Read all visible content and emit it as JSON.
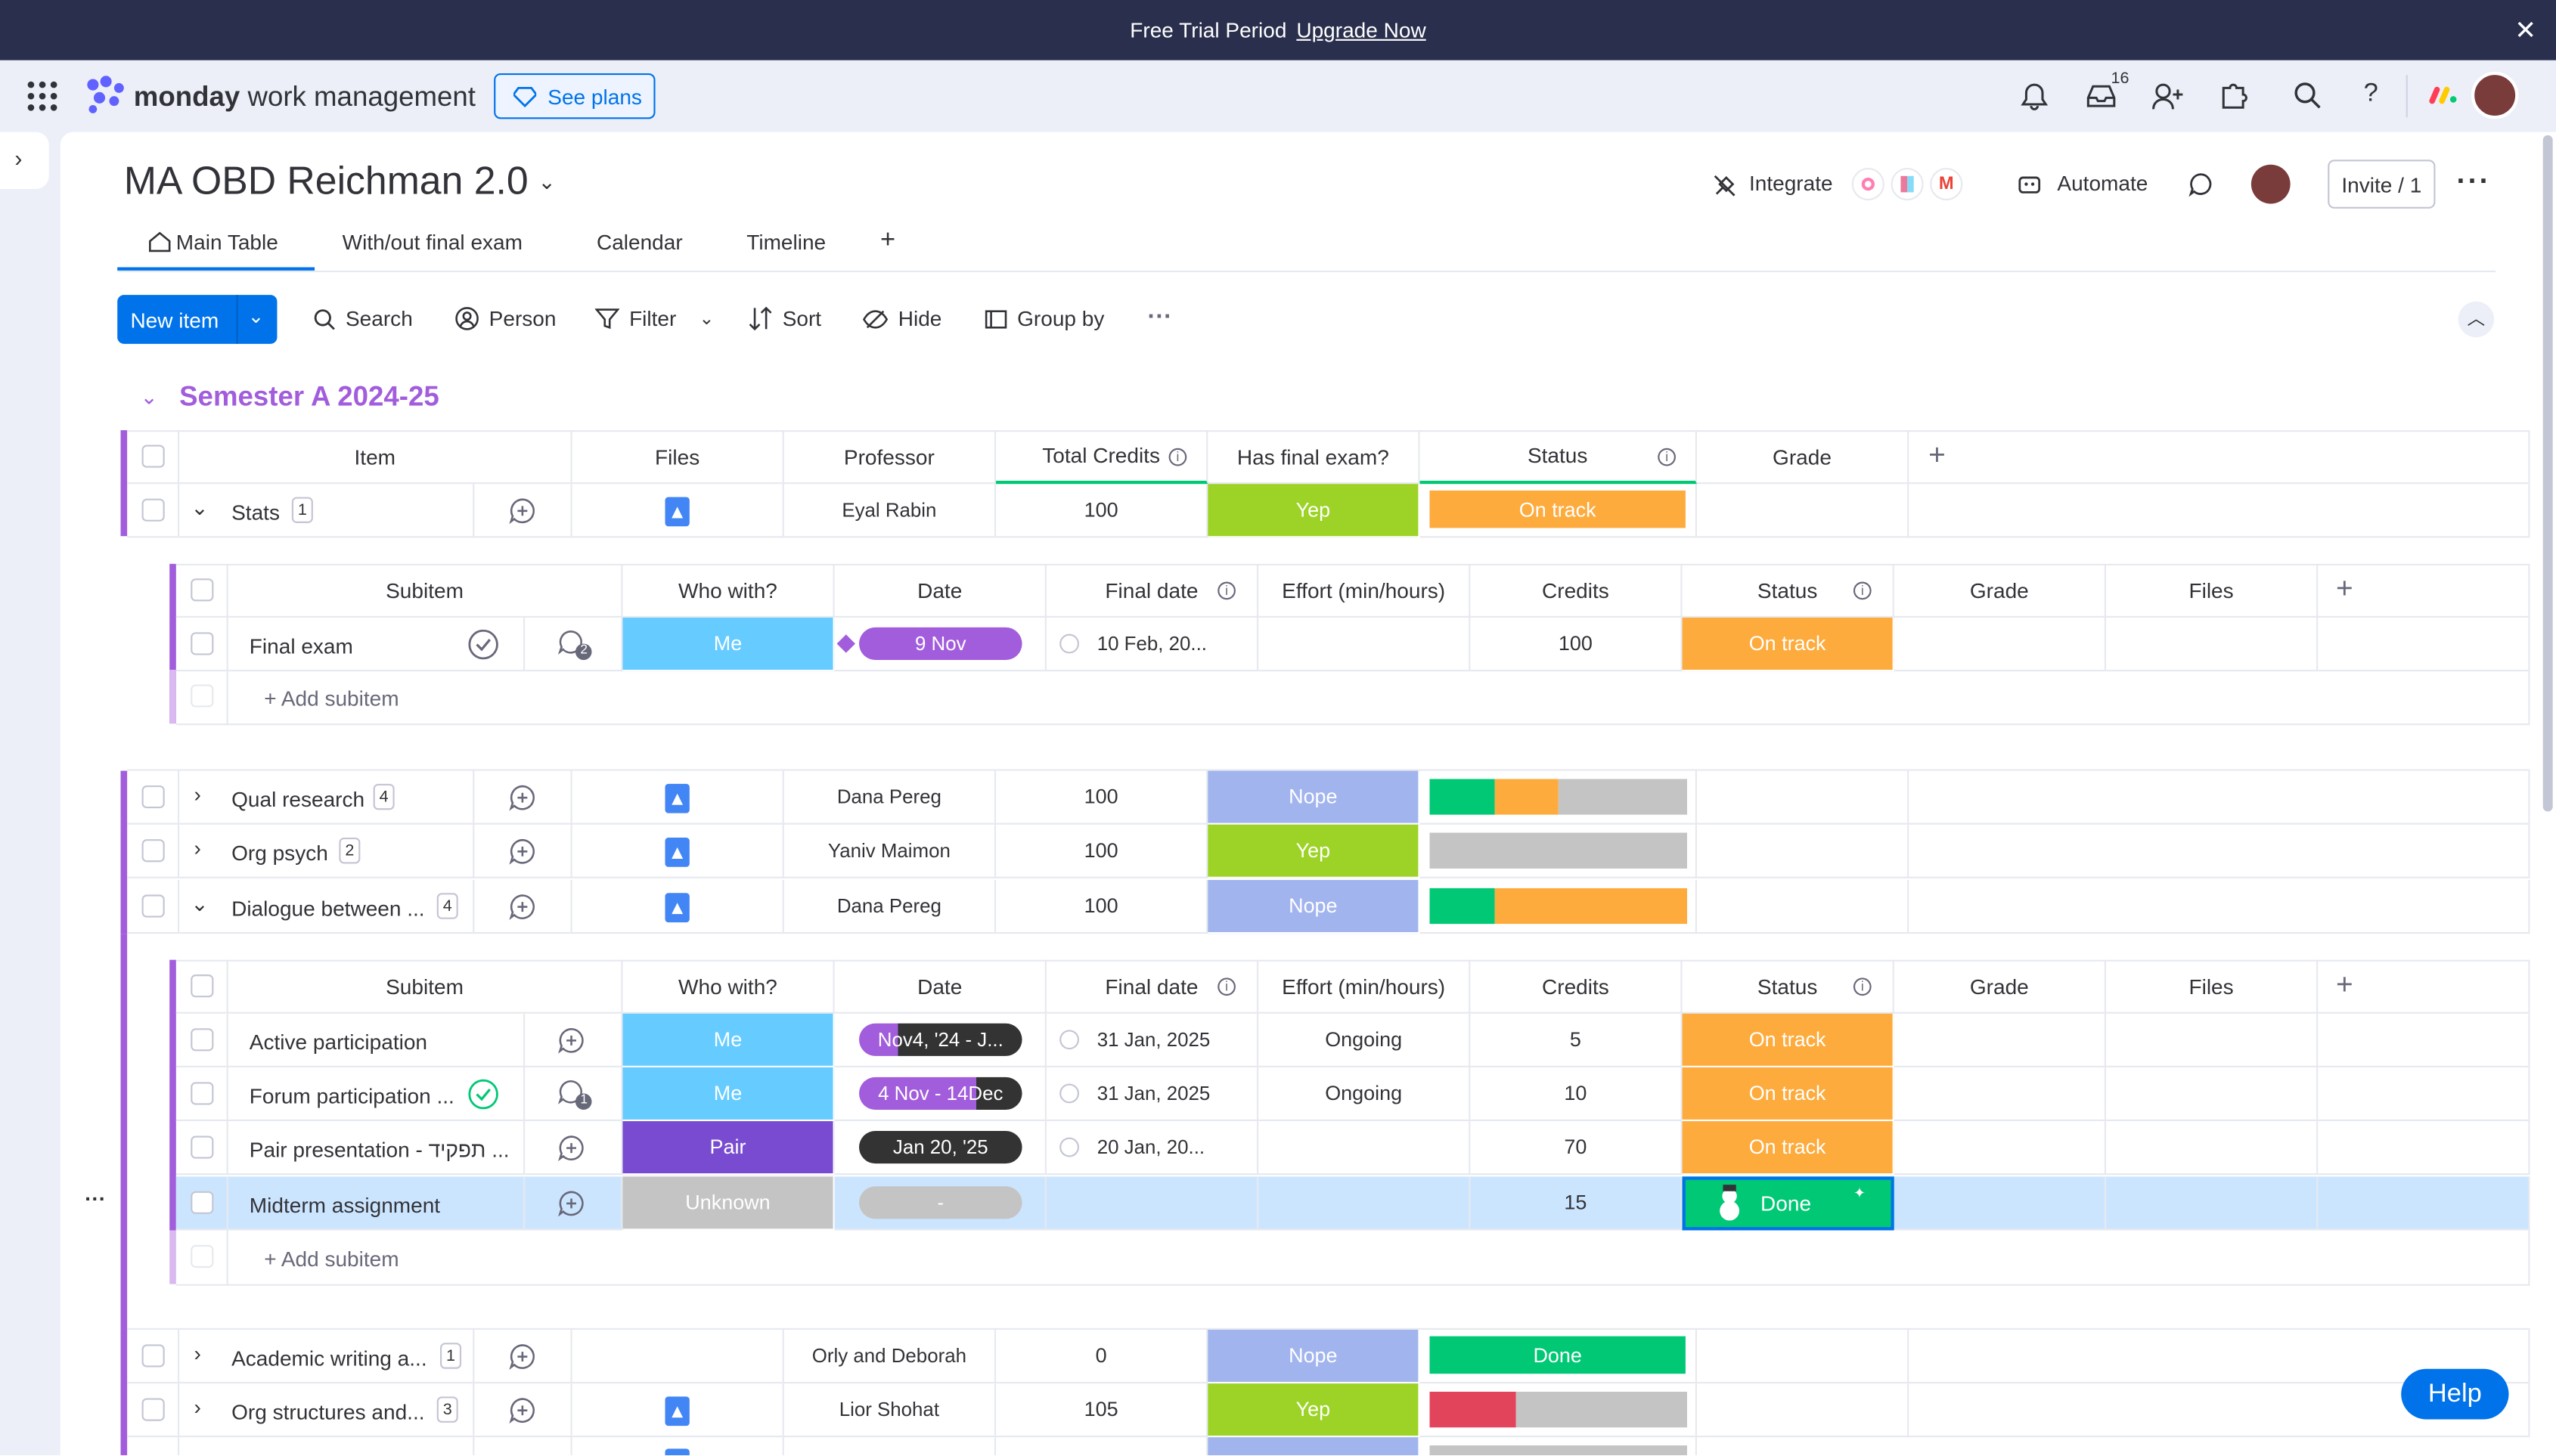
{
  "trial": {
    "text": "Free Trial Period",
    "link": "Upgrade Now"
  },
  "app": {
    "logo_bold": "monday",
    "logo_rest": "work management",
    "see_plans": "See plans",
    "inbox_count": "16"
  },
  "board": {
    "title": "MA OBD Reichman 2.0",
    "integrate": "Integrate",
    "automate": "Automate",
    "invite": "Invite / 1",
    "tabs": [
      "Main Table",
      "With/out final exam",
      "Calendar",
      "Timeline"
    ],
    "toolbar": {
      "new_item": "New item",
      "search": "Search",
      "person": "Person",
      "filter": "Filter",
      "sort": "Sort",
      "hide": "Hide",
      "group_by": "Group by"
    }
  },
  "group": {
    "title": "Semester A 2024-25",
    "columns": [
      "Item",
      "Files",
      "Professor",
      "Total Credits",
      "Has final exam?",
      "Status",
      "Grade"
    ],
    "sub_columns": [
      "Subitem",
      "Who with?",
      "Date",
      "Final date",
      "Effort (min/hours)",
      "Credits",
      "Status",
      "Grade",
      "Files"
    ],
    "add_subitem": "+ Add subitem",
    "items": [
      {
        "name": "Stats",
        "count": "1",
        "professor": "Eyal Rabin",
        "credits": "100",
        "exam": "Yep",
        "status": "On track"
      },
      {
        "name": "Qual research",
        "count": "4",
        "professor": "Dana Pereg",
        "credits": "100",
        "exam": "Nope"
      },
      {
        "name": "Org psych",
        "count": "2",
        "professor": "Yaniv Maimon",
        "credits": "100",
        "exam": "Yep"
      },
      {
        "name": "Dialogue between ...",
        "count": "4",
        "professor": "Dana Pereg",
        "credits": "100",
        "exam": "Nope"
      },
      {
        "name": "Academic writing a...",
        "count": "1",
        "professor": "Orly and Deborah",
        "credits": "0",
        "exam": "Nope",
        "status": "Done"
      },
      {
        "name": "Org structures and...",
        "count": "3",
        "professor": "Lior Shohat",
        "credits": "105",
        "exam": "Yep"
      }
    ],
    "sub1": [
      {
        "name": "Final exam",
        "who": "Me",
        "date": "9 Nov",
        "final": "10 Feb, 20...",
        "credits": "100",
        "status": "On track",
        "updates": "2"
      }
    ],
    "sub2": [
      {
        "name": "Active participation",
        "who": "Me",
        "date_a": "Nov",
        "date_b": "4, '24 - J...",
        "final": "31 Jan, 2025",
        "effort": "Ongoing",
        "credits": "5",
        "status": "On track"
      },
      {
        "name": "Forum participation ...",
        "who": "Me",
        "date_a": "4 Nov - 14",
        "date_b": "Dec",
        "final": "31 Jan, 2025",
        "effort": "Ongoing",
        "credits": "10",
        "status": "On track",
        "updates": "1"
      },
      {
        "name": "Pair presentation - תפקיד ...",
        "who": "Pair",
        "date": "Jan 20, '25",
        "final": "20 Jan, 20...",
        "credits": "70",
        "status": "On track"
      },
      {
        "name": "Midterm assignment",
        "who": "Unknown",
        "date": "-",
        "credits": "15",
        "status": "Done"
      }
    ]
  },
  "help": "Help",
  "colors": {
    "primary": "#0073ea",
    "on_track": "#fdab3d",
    "done": "#00c875",
    "yep": "#9cd326",
    "nope": "#a1b4ee",
    "purple": "#a25ddc"
  }
}
